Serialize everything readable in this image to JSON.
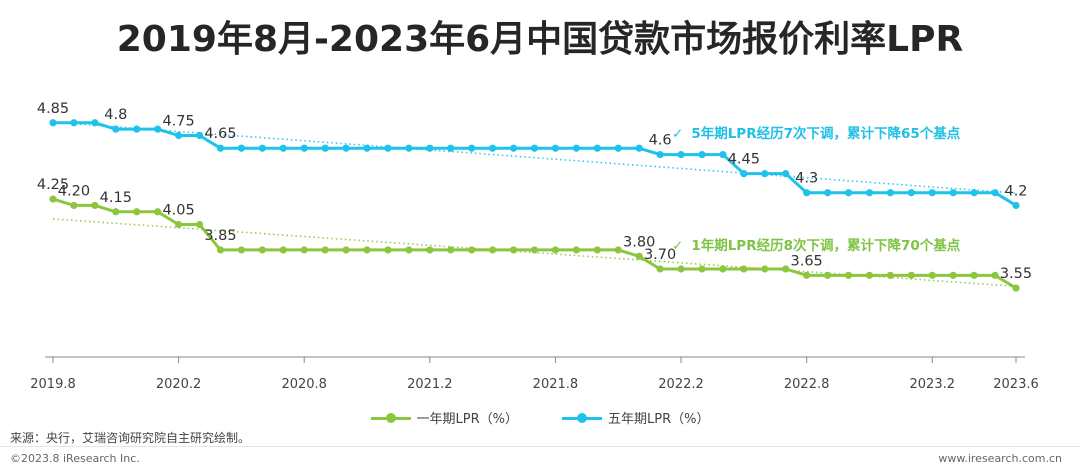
{
  "title": "2019年8月-2023年6月中国贷款市场报价利率LPR",
  "chart_data": {
    "type": "line",
    "title": "2019年8月-2023年6月中国贷款市场报价利率LPR",
    "x_tick_labels": [
      "2019.8",
      "2020.2",
      "2020.8",
      "2021.2",
      "2021.8",
      "2022.2",
      "2022.8",
      "2023.2",
      "2023.6"
    ],
    "x_tick_indices": [
      0,
      6,
      12,
      18,
      24,
      30,
      36,
      42,
      46
    ],
    "ylim": [
      3.0,
      5.1
    ],
    "series": [
      {
        "name": "一年期LPR（%）",
        "color": "#8cc63f",
        "values": [
          4.25,
          4.2,
          4.2,
          4.15,
          4.15,
          4.15,
          4.05,
          4.05,
          3.85,
          3.85,
          3.85,
          3.85,
          3.85,
          3.85,
          3.85,
          3.85,
          3.85,
          3.85,
          3.85,
          3.85,
          3.85,
          3.85,
          3.85,
          3.85,
          3.85,
          3.85,
          3.85,
          3.85,
          3.8,
          3.7,
          3.7,
          3.7,
          3.7,
          3.7,
          3.7,
          3.7,
          3.65,
          3.65,
          3.65,
          3.65,
          3.65,
          3.65,
          3.65,
          3.65,
          3.65,
          3.65,
          3.55
        ],
        "point_labels": [
          {
            "i": 0,
            "text": "4.25"
          },
          {
            "i": 1,
            "text": "4.20"
          },
          {
            "i": 3,
            "text": "4.15"
          },
          {
            "i": 6,
            "text": "4.05"
          },
          {
            "i": 8,
            "text": "3.85"
          },
          {
            "i": 28,
            "text": "3.80"
          },
          {
            "i": 29,
            "text": "3.70"
          },
          {
            "i": 36,
            "text": "3.65"
          },
          {
            "i": 46,
            "text": "3.55"
          }
        ]
      },
      {
        "name": "五年期LPR（%）",
        "color": "#1fc2eb",
        "values": [
          4.85,
          4.85,
          4.85,
          4.8,
          4.8,
          4.8,
          4.75,
          4.75,
          4.65,
          4.65,
          4.65,
          4.65,
          4.65,
          4.65,
          4.65,
          4.65,
          4.65,
          4.65,
          4.65,
          4.65,
          4.65,
          4.65,
          4.65,
          4.65,
          4.65,
          4.65,
          4.65,
          4.65,
          4.65,
          4.6,
          4.6,
          4.6,
          4.6,
          4.45,
          4.45,
          4.45,
          4.3,
          4.3,
          4.3,
          4.3,
          4.3,
          4.3,
          4.3,
          4.3,
          4.3,
          4.3,
          4.2
        ],
        "point_labels": [
          {
            "i": 0,
            "text": "4.85"
          },
          {
            "i": 3,
            "text": "4.8"
          },
          {
            "i": 6,
            "text": "4.75"
          },
          {
            "i": 8,
            "text": "4.65"
          },
          {
            "i": 29,
            "text": "4.6"
          },
          {
            "i": 33,
            "text": "4.45"
          },
          {
            "i": 36,
            "text": "4.3"
          },
          {
            "i": 46,
            "text": "4.2"
          }
        ]
      }
    ],
    "trendlines": "dotted",
    "legend_position": "bottom"
  },
  "annotations": {
    "five_year": {
      "check": "✓",
      "text": "5年期LPR经历7次下调，累计下降65个基点"
    },
    "one_year": {
      "check": "✓",
      "text": "1年期LPR经历8次下调，累计下降70个基点"
    }
  },
  "legend": {
    "one_year": "一年期LPR（%）",
    "five_year": "五年期LPR（%）"
  },
  "colors": {
    "one_year": "#8cc63f",
    "five_year": "#1fc2eb",
    "axis": "#888888"
  },
  "footer": {
    "source": "来源：央行，艾瑞咨询研究院自主研究绘制。",
    "copyright": "©2023.8 iResearch Inc.",
    "website": "www.iresearch.com.cn"
  }
}
